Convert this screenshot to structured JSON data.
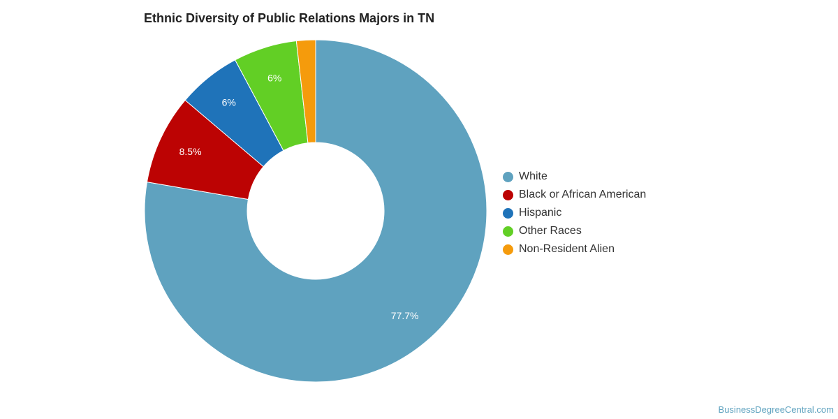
{
  "chart_data": {
    "type": "pie",
    "title": "Ethnic Diversity of Public Relations Majors in TN",
    "donut": true,
    "legend_position": "right",
    "slices": [
      {
        "label": "White",
        "value": 77.7,
        "data_label": "77.7%",
        "color": "#5fa2bf"
      },
      {
        "label": "Black or African American",
        "value": 8.5,
        "data_label": "8.5%",
        "color": "#bc0303"
      },
      {
        "label": "Hispanic",
        "value": 6.0,
        "data_label": "6%",
        "color": "#1f73b9"
      },
      {
        "label": "Other Races",
        "value": 6.0,
        "data_label": "6%",
        "color": "#62cf25"
      },
      {
        "label": "Non-Resident Alien",
        "value": 1.8,
        "data_label": "",
        "color": "#f59b0c"
      }
    ]
  },
  "footer": {
    "credit": "BusinessDegreeCentral.com"
  }
}
